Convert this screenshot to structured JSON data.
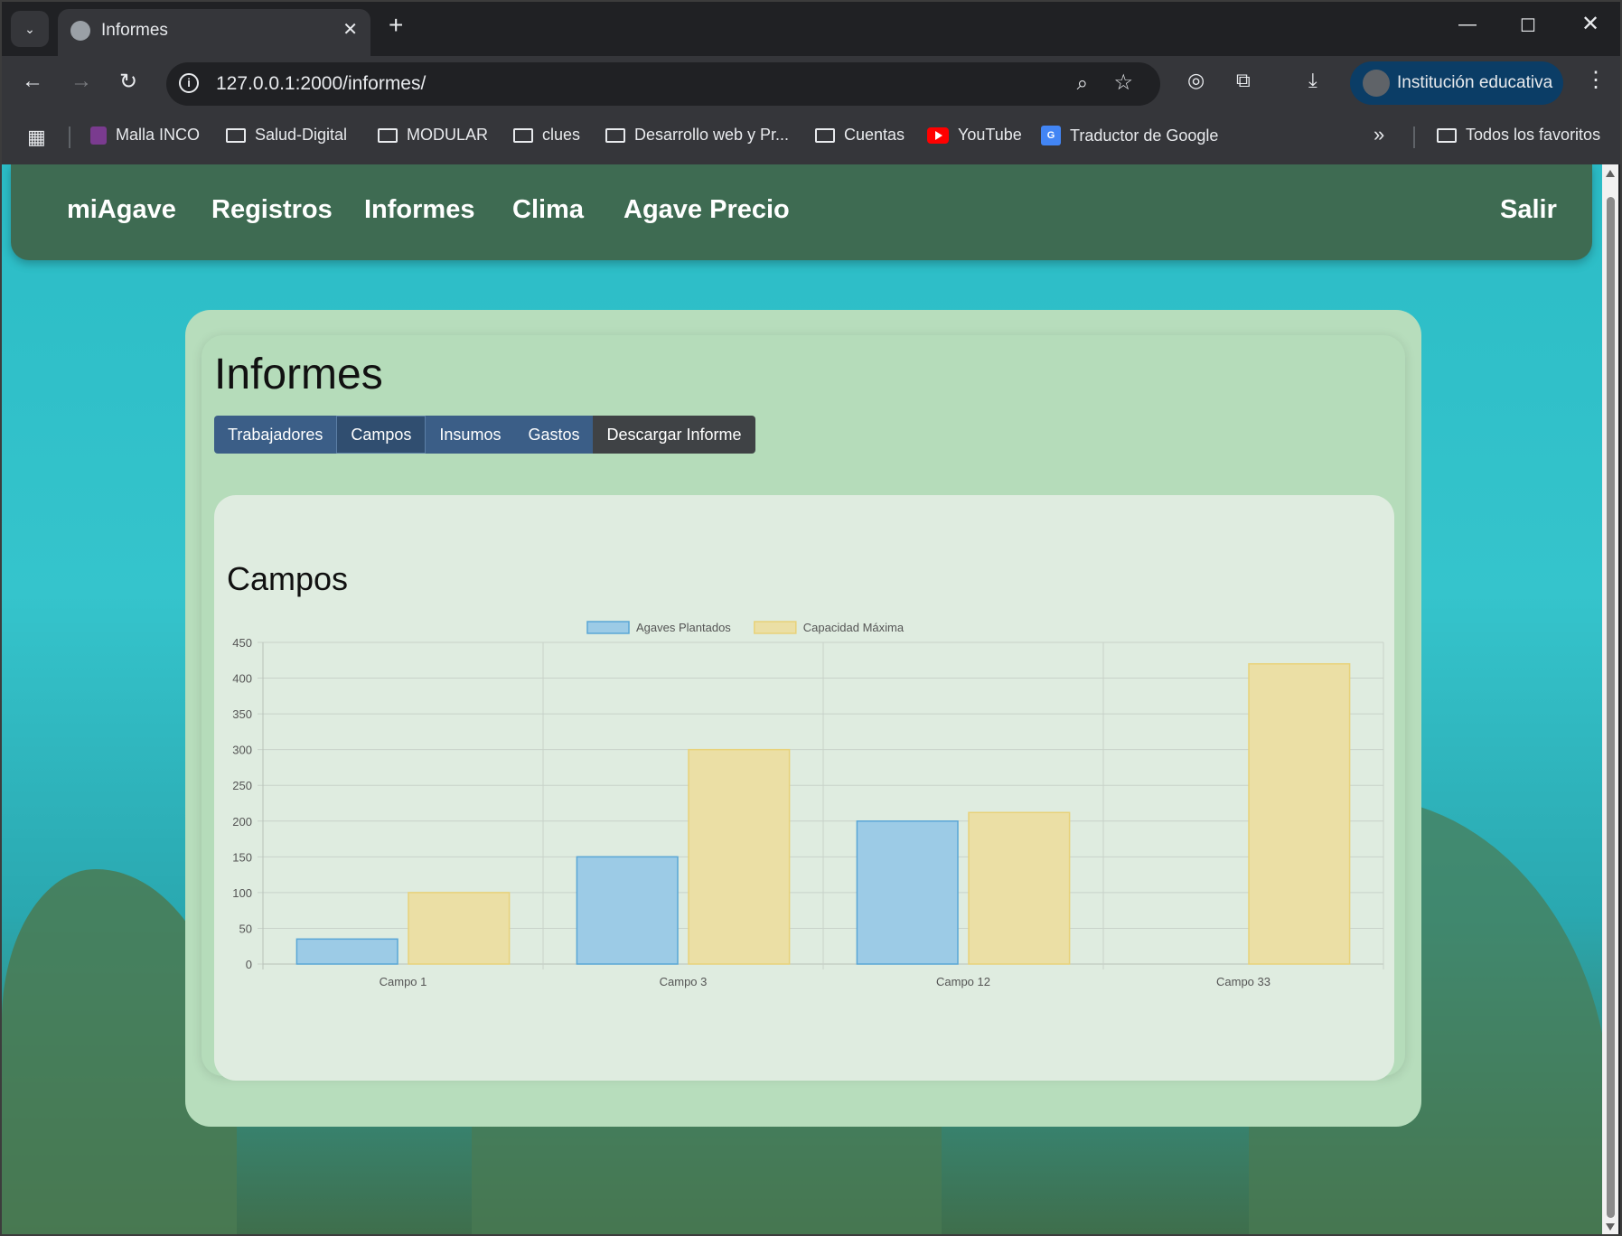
{
  "browser": {
    "tab_title": "Informes",
    "url": "127.0.0.1:2000/informes/",
    "profile_name": "Institución educativa",
    "bookmarks": [
      "Malla INCO",
      "Salud-Digital",
      "MODULAR",
      "clues",
      "Desarrollo web y Pr...",
      "Cuentas",
      "YouTube",
      "Traductor de Google"
    ],
    "all_bookmarks": "Todos los favoritos"
  },
  "nav": {
    "brand": "miAgave",
    "links": [
      "Registros",
      "Informes",
      "Clima",
      "Agave Precio"
    ],
    "logout": "Salir"
  },
  "page": {
    "title": "Informes",
    "tabs": [
      "Trabajadores",
      "Campos",
      "Insumos",
      "Gastos"
    ],
    "active_tab": "Campos",
    "download": "Descargar Informe"
  },
  "chart_data": {
    "type": "bar",
    "title": "Campos",
    "categories": [
      "Campo 1",
      "Campo 3",
      "Campo 12",
      "Campo 33"
    ],
    "series": [
      {
        "name": "Agaves Plantados",
        "values": [
          35,
          150,
          200,
          0
        ],
        "color": "#9ccbe6",
        "border": "#5aa6d6"
      },
      {
        "name": "Capacidad Máxima",
        "values": [
          100,
          300,
          212,
          420
        ],
        "color": "#ebdfa5",
        "border": "#e8d27a"
      }
    ],
    "ylim": [
      0,
      450
    ],
    "yticks": [
      0,
      50,
      100,
      150,
      200,
      250,
      300,
      350,
      400,
      450
    ],
    "grid": true,
    "legend": "top-center"
  }
}
